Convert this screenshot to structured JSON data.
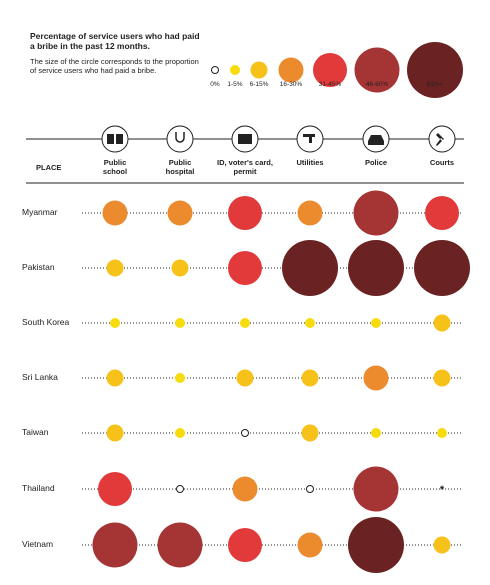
{
  "legend": {
    "title": "Percentage of service users who had paid a bribe in the past 12 months.",
    "subtitle": "The size of the circle corresponds to the proportion of service users who had paid a bribe.",
    "bins": [
      {
        "label": "0%",
        "color": "#ffffff"
      },
      {
        "label": "1-5%",
        "color": "#f6dc0c"
      },
      {
        "label": "6-15%",
        "color": "#f6c21a"
      },
      {
        "label": "16-30%",
        "color": "#ec8a2e"
      },
      {
        "label": "31-45%",
        "color": "#e23a3b"
      },
      {
        "label": "46-60%",
        "color": "#a53434"
      },
      {
        "label": "61%+",
        "color": "#6a2322"
      }
    ]
  },
  "table": {
    "place_header": "PLACE",
    "columns": [
      "Public school",
      "Public hospital",
      "ID, voter's card, permit",
      "Utilities",
      "Police",
      "Courts"
    ],
    "rows": [
      {
        "place": "Myanmar",
        "cells": [
          "16-30%",
          "16-30%",
          "31-45%",
          "16-30%",
          "46-60%",
          "31-45%"
        ]
      },
      {
        "place": "Pakistan",
        "cells": [
          "6-15%",
          "6-15%",
          "31-45%",
          "61%+",
          "61%+",
          "61%+"
        ]
      },
      {
        "place": "South Korea",
        "cells": [
          "1-5%",
          "1-5%",
          "1-5%",
          "1-5%",
          "1-5%",
          "6-15%"
        ]
      },
      {
        "place": "Sri Lanka",
        "cells": [
          "6-15%",
          "1-5%",
          "6-15%",
          "6-15%",
          "16-30%",
          "6-15%"
        ]
      },
      {
        "place": "Taiwan",
        "cells": [
          "6-15%",
          "1-5%",
          "0%",
          "6-15%",
          "1-5%",
          "1-5%"
        ]
      },
      {
        "place": "Thailand",
        "cells": [
          "31-45%",
          "0%",
          "16-30%",
          "0%",
          "46-60%",
          "*"
        ]
      },
      {
        "place": "Vietnam",
        "cells": [
          "46-60%",
          "46-60%",
          "31-45%",
          "16-30%",
          "61%+",
          "6-15%"
        ]
      }
    ]
  }
}
